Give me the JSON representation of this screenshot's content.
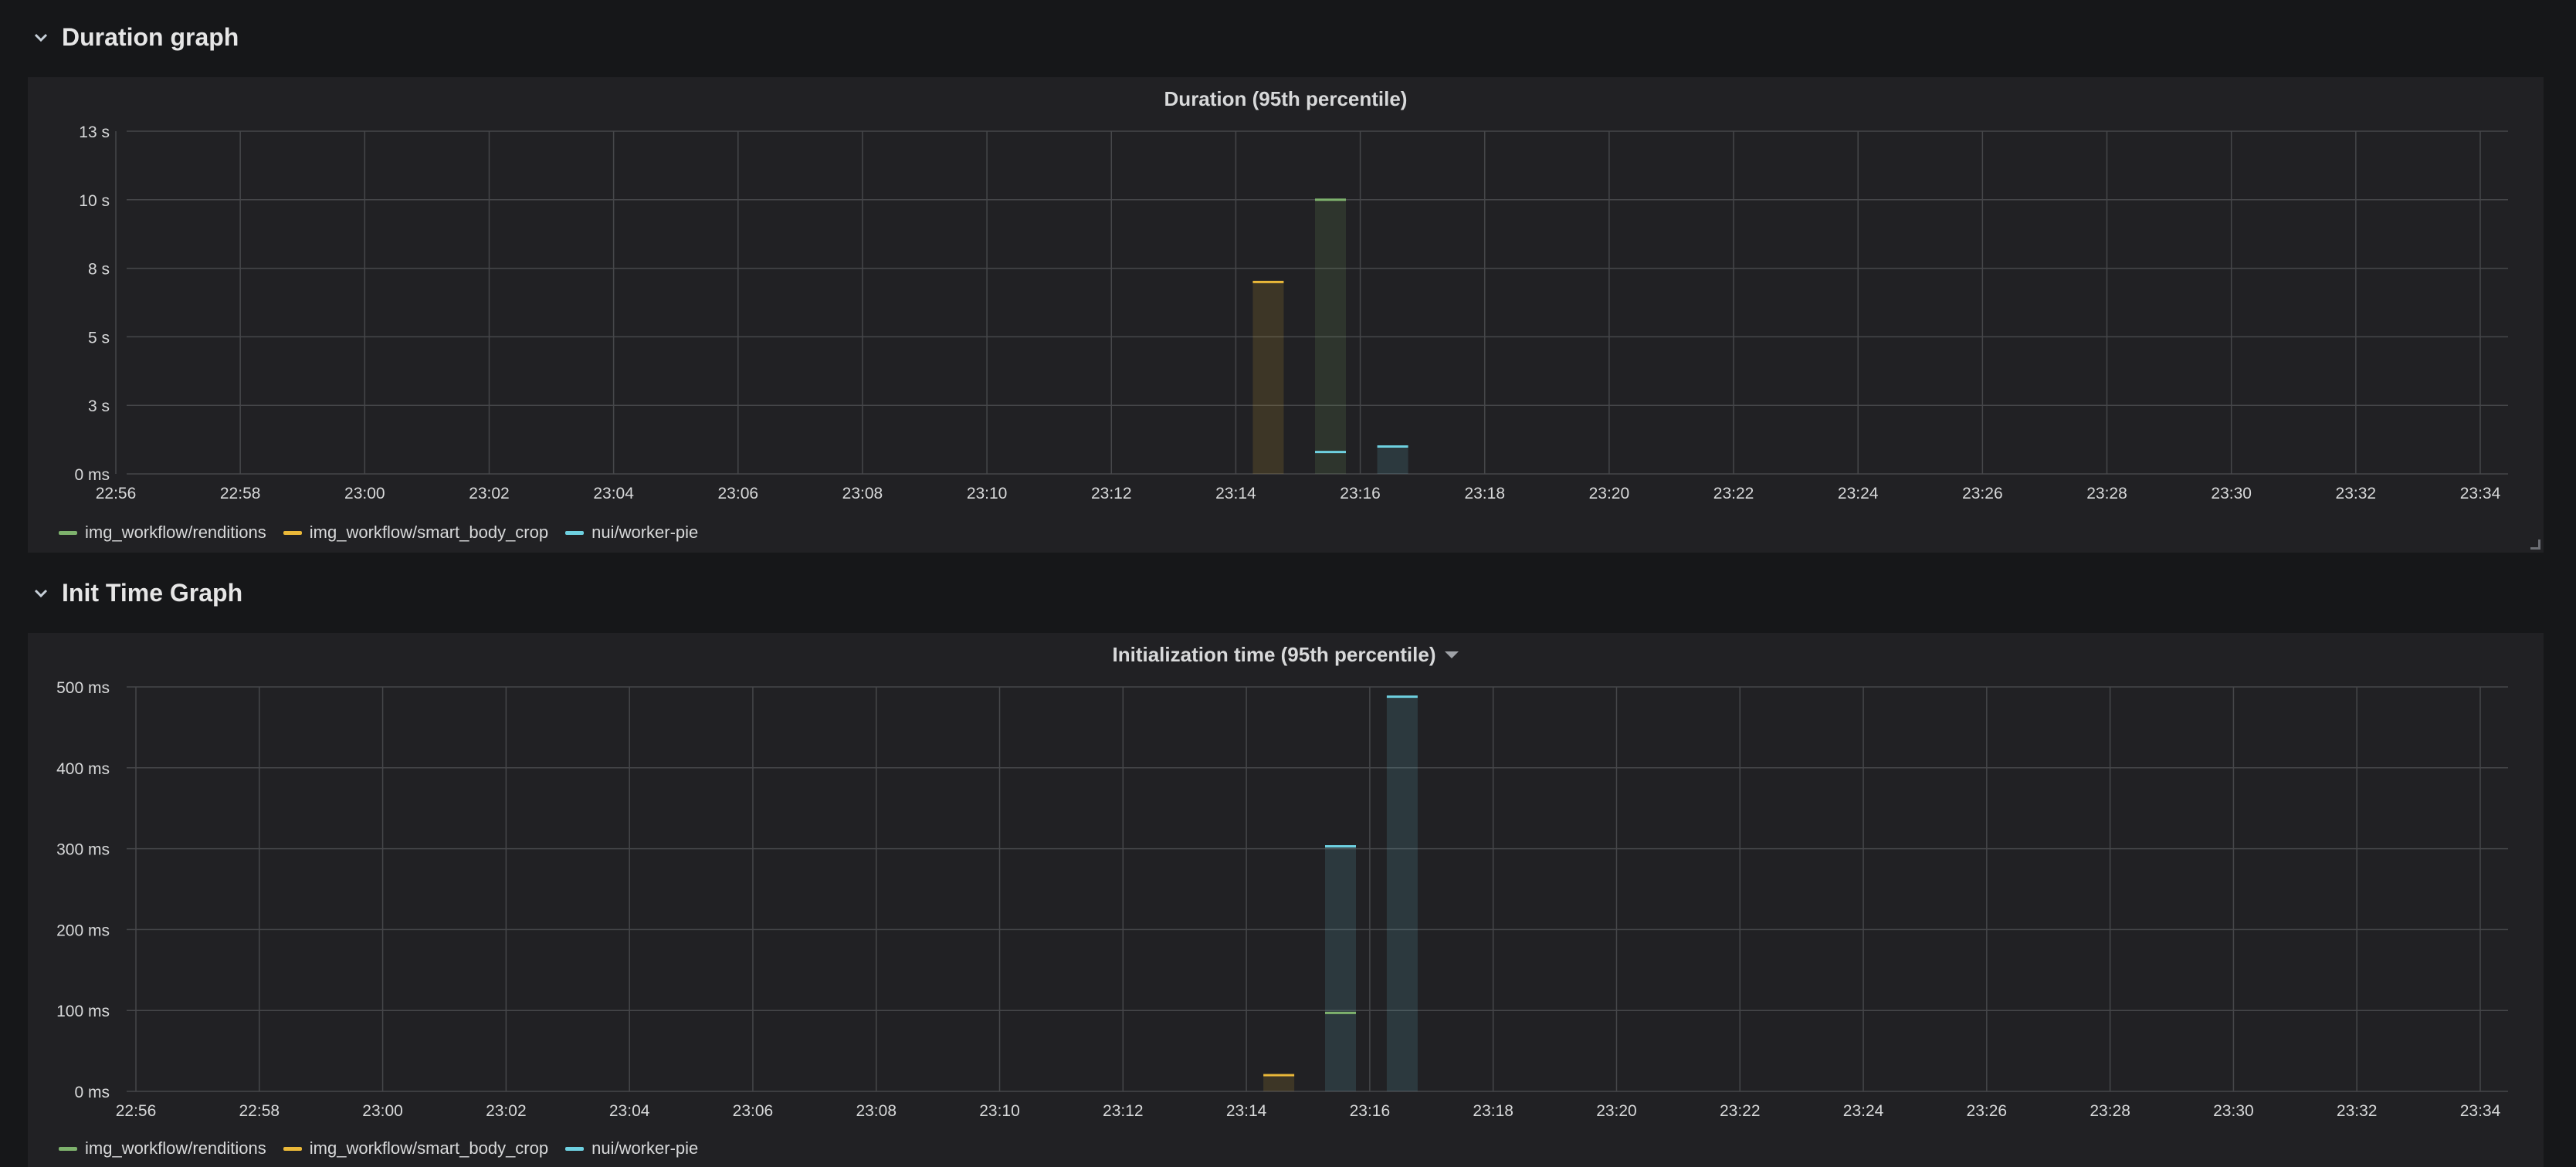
{
  "rows": [
    {
      "title": "Duration graph"
    },
    {
      "title": "Init Time Graph"
    }
  ],
  "colors": {
    "img_workflow/renditions": "#7eb26d",
    "img_workflow/smart_body_crop": "#eab839",
    "nui/worker-pie": "#6ed0e0",
    "grid": "#46474a",
    "tick_text": "#d8d9da"
  },
  "icons": {
    "row_toggle": "chevron-down-icon",
    "panel_menu": "caret-down-icon"
  },
  "chart_data": [
    {
      "type": "bar",
      "title": "Duration (95th percentile)",
      "xlabel": "",
      "ylabel": "",
      "x_ticks": [
        "22:56",
        "22:58",
        "23:00",
        "23:02",
        "23:04",
        "23:06",
        "23:08",
        "23:10",
        "23:12",
        "23:14",
        "23:16",
        "23:18",
        "23:20",
        "23:22",
        "23:24",
        "23:26",
        "23:28",
        "23:30",
        "23:32",
        "23:34"
      ],
      "y_ticks": [
        "0 ms",
        "3 s",
        "5 s",
        "8 s",
        "10 s",
        "13 s"
      ],
      "ylim": [
        0,
        12.5
      ],
      "grid": true,
      "legend_position": "bottom-left",
      "series": [
        {
          "name": "img_workflow/renditions",
          "color": "#7eb26d",
          "points": [
            {
              "x": "23:15",
              "y": 10.0
            }
          ]
        },
        {
          "name": "img_workflow/smart_body_crop",
          "color": "#eab839",
          "points": [
            {
              "x": "23:14",
              "y": 7.0
            }
          ]
        },
        {
          "name": "nui/worker-pie",
          "color": "#6ed0e0",
          "points": [
            {
              "x": "23:15",
              "y": 0.8
            },
            {
              "x": "23:16",
              "y": 1.0
            }
          ]
        }
      ]
    },
    {
      "type": "bar",
      "title": "Initialization time (95th percentile)",
      "xlabel": "",
      "ylabel": "",
      "x_ticks": [
        "22:56",
        "22:58",
        "23:00",
        "23:02",
        "23:04",
        "23:06",
        "23:08",
        "23:10",
        "23:12",
        "23:14",
        "23:16",
        "23:18",
        "23:20",
        "23:22",
        "23:24",
        "23:26",
        "23:28",
        "23:30",
        "23:32",
        "23:34"
      ],
      "y_ticks": [
        "0 ms",
        "100 ms",
        "200 ms",
        "300 ms",
        "400 ms",
        "500 ms"
      ],
      "ylim": [
        0,
        500
      ],
      "grid": true,
      "legend_position": "bottom-left",
      "series": [
        {
          "name": "img_workflow/renditions",
          "color": "#7eb26d",
          "points": [
            {
              "x": "23:15",
              "y": 97
            }
          ]
        },
        {
          "name": "img_workflow/smart_body_crop",
          "color": "#eab839",
          "points": [
            {
              "x": "23:14",
              "y": 20
            }
          ]
        },
        {
          "name": "nui/worker-pie",
          "color": "#6ed0e0",
          "points": [
            {
              "x": "23:15",
              "y": 303
            },
            {
              "x": "23:16",
              "y": 488
            }
          ]
        }
      ]
    }
  ]
}
